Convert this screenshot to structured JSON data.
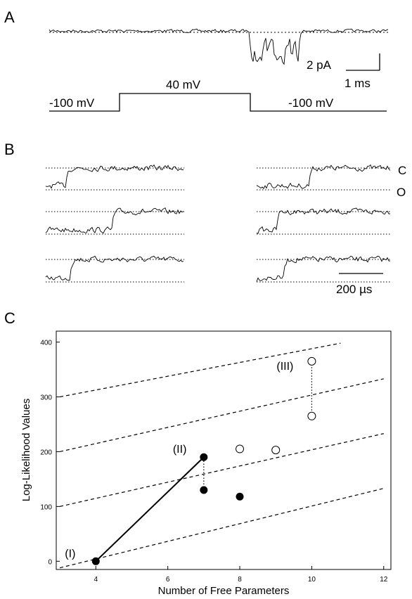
{
  "panels": {
    "a": {
      "letter": "A",
      "scalebar_current": "2 pA",
      "scalebar_time": "1 ms",
      "voltage_steps": [
        "-100 mV",
        "40 mV",
        "-100 mV"
      ]
    },
    "b": {
      "letter": "B",
      "state_closed": "C",
      "state_open": "O",
      "scalebar_time": "200 µs"
    },
    "c": {
      "letter": "C"
    }
  },
  "chart_data": {
    "type": "scatter",
    "xlabel": "Number of Free Parameters",
    "ylabel": "Log-Likelihood Values",
    "xlim": [
      2.9,
      12.2
    ],
    "ylim": [
      -15,
      420
    ],
    "xticks": [
      4,
      6,
      8,
      10,
      12
    ],
    "yticks": [
      0,
      100,
      200,
      300,
      400
    ],
    "grid": false,
    "series": [
      {
        "marker": "filled",
        "points": [
          {
            "x": 4,
            "y": 0
          },
          {
            "x": 7,
            "y": 190
          },
          {
            "x": 7,
            "y": 130
          },
          {
            "x": 8,
            "y": 118
          }
        ]
      },
      {
        "marker": "open",
        "points": [
          {
            "x": 8,
            "y": 205
          },
          {
            "x": 9,
            "y": 203
          },
          {
            "x": 10,
            "y": 365
          },
          {
            "x": 10,
            "y": 265
          }
        ]
      }
    ],
    "fit_line": {
      "x": [
        4,
        7
      ],
      "y": [
        0,
        190
      ]
    },
    "dotted_connectors": [
      {
        "x": 7,
        "y": [
          130,
          190
        ]
      },
      {
        "x": 10,
        "y": [
          265,
          365
        ]
      }
    ],
    "dashed_lines": [
      {
        "x": [
          3,
          12
        ],
        "y": [
          -12,
          133
        ]
      },
      {
        "x": [
          3,
          12
        ],
        "y": [
          100,
          233
        ]
      },
      {
        "x": [
          3,
          12
        ],
        "y": [
          200,
          333
        ]
      },
      {
        "x": [
          3,
          10.8
        ],
        "y": [
          300,
          398
        ]
      }
    ],
    "annotations": [
      {
        "text": "(I)",
        "x": 4,
        "y": 0
      },
      {
        "text": "(II)",
        "x": 7,
        "y": 190
      },
      {
        "text": "(III)",
        "x": 10,
        "y": 365
      }
    ]
  }
}
